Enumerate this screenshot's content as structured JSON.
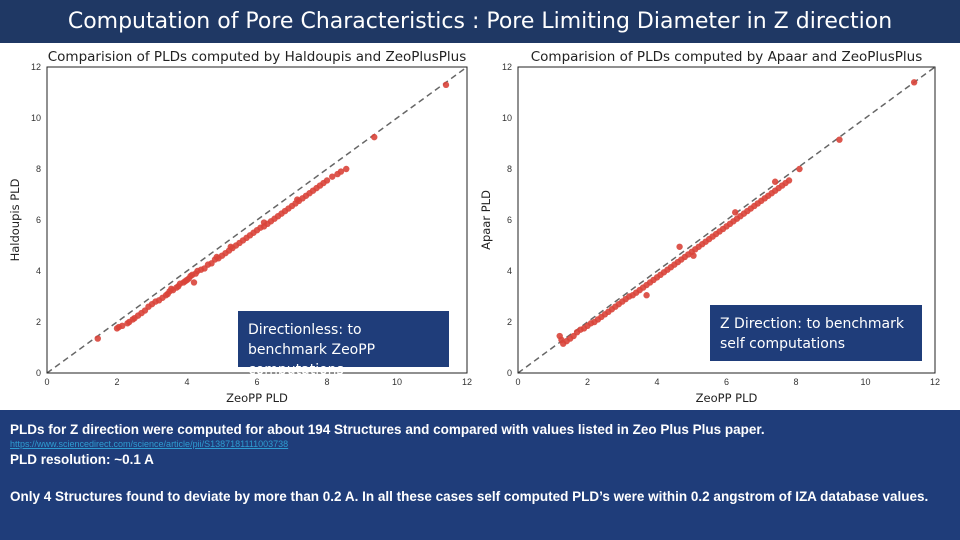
{
  "slide": {
    "title": "Computation of Pore Characteristics : Pore Limiting Diameter in Z direction"
  },
  "annotations": {
    "left": "Directionless: to benchmark ZeoPP computations",
    "right": "Z Direction: to benchmark self computations"
  },
  "summary": {
    "line1": "PLDs for Z direction were computed for about 194 Structures and compared with values listed in Zeo Plus Plus paper.",
    "link": "https://www.sciencedirect.com/science/article/pii/S1387181111003738",
    "line2": "PLD resolution: ~0.1 A",
    "line3": "Only 4 Structures found to deviate by more than 0.2 A. In all these cases self computed PLD’s were within  0.2 angstrom of IZA database values."
  },
  "colors": {
    "header_bg": "#1f3864",
    "box_bg": "#1f3d7a",
    "point": "#d9443a",
    "diagonal": "#666666"
  },
  "chart_data": [
    {
      "type": "scatter",
      "title": "Comparision of PLDs computed by Haldoupis and ZeoPlusPlus",
      "xlabel": "ZeoPP PLD",
      "ylabel": "Haldoupis PLD",
      "xlim": [
        0,
        12
      ],
      "ylim": [
        0,
        12
      ],
      "xticks": [
        "0",
        "2",
        "4",
        "6",
        "8",
        "10",
        "12"
      ],
      "yticks": [
        "0",
        "2",
        "4",
        "6",
        "8",
        "10",
        "12"
      ],
      "grid": false,
      "reference_line": "y = x (dashed)",
      "points": [
        [
          1.45,
          1.35
        ],
        [
          2.0,
          1.75
        ],
        [
          2.05,
          1.8
        ],
        [
          2.15,
          1.85
        ],
        [
          2.3,
          1.95
        ],
        [
          2.35,
          2.0
        ],
        [
          2.5,
          2.15
        ],
        [
          2.6,
          2.25
        ],
        [
          2.7,
          2.35
        ],
        [
          2.8,
          2.45
        ],
        [
          2.9,
          2.6
        ],
        [
          3.0,
          2.7
        ],
        [
          3.1,
          2.8
        ],
        [
          3.2,
          2.85
        ],
        [
          3.3,
          2.95
        ],
        [
          3.4,
          3.05
        ],
        [
          3.45,
          3.1
        ],
        [
          3.5,
          3.2
        ],
        [
          3.6,
          3.25
        ],
        [
          3.7,
          3.35
        ],
        [
          3.75,
          3.4
        ],
        [
          3.8,
          3.5
        ],
        [
          3.9,
          3.55
        ],
        [
          3.95,
          3.6
        ],
        [
          4.0,
          3.65
        ],
        [
          4.05,
          3.7
        ],
        [
          4.1,
          3.8
        ],
        [
          4.15,
          3.85
        ],
        [
          4.2,
          3.55
        ],
        [
          4.25,
          3.9
        ],
        [
          4.3,
          4.0
        ],
        [
          4.4,
          4.05
        ],
        [
          4.5,
          4.1
        ],
        [
          4.6,
          4.25
        ],
        [
          4.7,
          4.3
        ],
        [
          4.8,
          4.45
        ],
        [
          4.9,
          4.5
        ],
        [
          5.0,
          4.6
        ],
        [
          5.1,
          4.7
        ],
        [
          5.2,
          4.8
        ],
        [
          5.3,
          4.9
        ],
        [
          5.4,
          5.0
        ],
        [
          5.5,
          5.1
        ],
        [
          5.6,
          5.2
        ],
        [
          5.7,
          5.3
        ],
        [
          5.8,
          5.4
        ],
        [
          5.9,
          5.5
        ],
        [
          6.0,
          5.6
        ],
        [
          6.1,
          5.7
        ],
        [
          6.2,
          5.75
        ],
        [
          6.3,
          5.85
        ],
        [
          6.4,
          5.95
        ],
        [
          6.5,
          6.05
        ],
        [
          6.6,
          6.15
        ],
        [
          6.7,
          6.25
        ],
        [
          6.8,
          6.35
        ],
        [
          6.9,
          6.45
        ],
        [
          7.0,
          6.55
        ],
        [
          7.1,
          6.65
        ],
        [
          7.2,
          6.75
        ],
        [
          7.3,
          6.85
        ],
        [
          7.4,
          6.95
        ],
        [
          7.5,
          7.05
        ],
        [
          7.6,
          7.15
        ],
        [
          7.7,
          7.25
        ],
        [
          7.8,
          7.35
        ],
        [
          7.9,
          7.45
        ],
        [
          8.0,
          7.55
        ],
        [
          8.15,
          7.7
        ],
        [
          8.3,
          7.8
        ],
        [
          8.4,
          7.9
        ],
        [
          8.55,
          8.0
        ],
        [
          9.35,
          9.25
        ],
        [
          11.4,
          11.3
        ],
        [
          6.2,
          5.9
        ],
        [
          5.25,
          4.95
        ],
        [
          4.85,
          4.55
        ],
        [
          3.55,
          3.3
        ],
        [
          2.45,
          2.1
        ],
        [
          7.15,
          6.8
        ]
      ]
    },
    {
      "type": "scatter",
      "title": "Comparision of PLDs computed by Apaar and ZeoPlusPlus",
      "xlabel": "ZeoPP PLD",
      "ylabel": "Apaar PLD",
      "xlim": [
        0,
        12
      ],
      "ylim": [
        0,
        12
      ],
      "xticks": [
        "0",
        "2",
        "4",
        "6",
        "8",
        "10",
        "12"
      ],
      "yticks": [
        "0",
        "2",
        "4",
        "6",
        "8",
        "10",
        "12"
      ],
      "grid": false,
      "reference_line": "y = x (dashed)",
      "points": [
        [
          1.25,
          1.3
        ],
        [
          1.3,
          1.15
        ],
        [
          1.4,
          1.25
        ],
        [
          1.5,
          1.35
        ],
        [
          1.6,
          1.45
        ],
        [
          1.7,
          1.6
        ],
        [
          1.8,
          1.7
        ],
        [
          1.9,
          1.75
        ],
        [
          2.0,
          1.85
        ],
        [
          2.1,
          1.95
        ],
        [
          2.2,
          2.0
        ],
        [
          2.3,
          2.1
        ],
        [
          2.4,
          2.2
        ],
        [
          2.5,
          2.3
        ],
        [
          2.6,
          2.4
        ],
        [
          2.7,
          2.5
        ],
        [
          2.8,
          2.6
        ],
        [
          2.9,
          2.7
        ],
        [
          3.0,
          2.8
        ],
        [
          3.1,
          2.9
        ],
        [
          3.2,
          3.0
        ],
        [
          3.3,
          3.05
        ],
        [
          3.4,
          3.15
        ],
        [
          3.5,
          3.25
        ],
        [
          3.6,
          3.35
        ],
        [
          3.7,
          3.45
        ],
        [
          3.8,
          3.55
        ],
        [
          3.9,
          3.65
        ],
        [
          4.0,
          3.75
        ],
        [
          4.1,
          3.85
        ],
        [
          4.2,
          3.95
        ],
        [
          4.3,
          4.05
        ],
        [
          4.4,
          4.15
        ],
        [
          4.5,
          4.25
        ],
        [
          4.6,
          4.35
        ],
        [
          4.7,
          4.45
        ],
        [
          4.8,
          4.55
        ],
        [
          4.9,
          4.65
        ],
        [
          5.0,
          4.75
        ],
        [
          5.1,
          4.85
        ],
        [
          5.2,
          4.95
        ],
        [
          5.3,
          5.05
        ],
        [
          5.4,
          5.15
        ],
        [
          5.5,
          5.25
        ],
        [
          5.6,
          5.35
        ],
        [
          5.7,
          5.45
        ],
        [
          5.8,
          5.55
        ],
        [
          5.9,
          5.65
        ],
        [
          6.0,
          5.75
        ],
        [
          6.1,
          5.85
        ],
        [
          6.2,
          5.95
        ],
        [
          6.3,
          6.05
        ],
        [
          6.4,
          6.15
        ],
        [
          6.5,
          6.25
        ],
        [
          6.6,
          6.35
        ],
        [
          6.7,
          6.45
        ],
        [
          6.8,
          6.55
        ],
        [
          6.9,
          6.65
        ],
        [
          7.0,
          6.75
        ],
        [
          7.1,
          6.85
        ],
        [
          7.2,
          6.95
        ],
        [
          7.3,
          7.05
        ],
        [
          7.4,
          7.15
        ],
        [
          7.5,
          7.25
        ],
        [
          7.6,
          7.35
        ],
        [
          7.7,
          7.45
        ],
        [
          7.4,
          7.5
        ],
        [
          7.8,
          7.55
        ],
        [
          8.1,
          8.0
        ],
        [
          9.25,
          9.15
        ],
        [
          11.4,
          11.4
        ],
        [
          3.7,
          3.05
        ],
        [
          4.65,
          4.95
        ],
        [
          6.25,
          6.3
        ],
        [
          1.2,
          1.45
        ],
        [
          5.05,
          4.6
        ]
      ]
    }
  ]
}
